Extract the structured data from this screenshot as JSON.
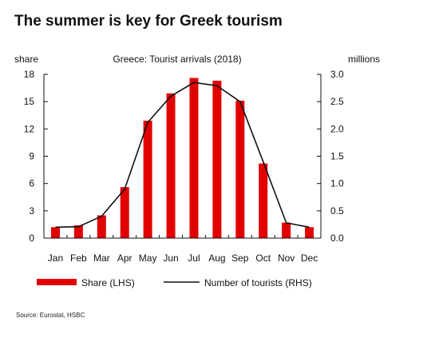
{
  "headline": "The summer is key for Greek tourism",
  "source": "Source: Eurostat, HSBC",
  "colors": {
    "bar": "#e10000",
    "line": "#111111",
    "axis": "#111111"
  },
  "chart_data": {
    "type": "bar",
    "title": "Greece: Tourist arrivals (2018)",
    "categories": [
      "Jan",
      "Feb",
      "Mar",
      "Apr",
      "May",
      "Jun",
      "Jul",
      "Aug",
      "Sep",
      "Oct",
      "Nov",
      "Dec"
    ],
    "series": [
      {
        "name": "Share (LHS)",
        "type": "bar",
        "axis": "left",
        "values": [
          1.2,
          1.4,
          2.5,
          5.6,
          12.9,
          15.9,
          17.6,
          17.3,
          15.1,
          8.2,
          1.7,
          1.2
        ]
      },
      {
        "name": "Number of tourists (RHS)",
        "type": "line",
        "axis": "right",
        "values": [
          0.2,
          0.21,
          0.4,
          0.9,
          2.12,
          2.6,
          2.85,
          2.79,
          2.5,
          1.4,
          0.28,
          0.2
        ]
      }
    ],
    "left_axis": {
      "label": "share",
      "ylim": [
        0,
        18
      ],
      "ticks": [
        0,
        3,
        6,
        9,
        12,
        15,
        18
      ],
      "tick_labels": [
        "0",
        "3",
        "6",
        "9",
        "12",
        "15",
        "18"
      ]
    },
    "right_axis": {
      "label": "millions",
      "ylim": [
        0,
        3.0
      ],
      "ticks": [
        0,
        0.5,
        1.0,
        1.5,
        2.0,
        2.5,
        3.0
      ],
      "tick_labels": [
        "0.0",
        "0.5",
        "1.0",
        "1.5",
        "2.0",
        "2.5",
        "3.0"
      ]
    },
    "legend_position": "bottom",
    "grid": false
  }
}
